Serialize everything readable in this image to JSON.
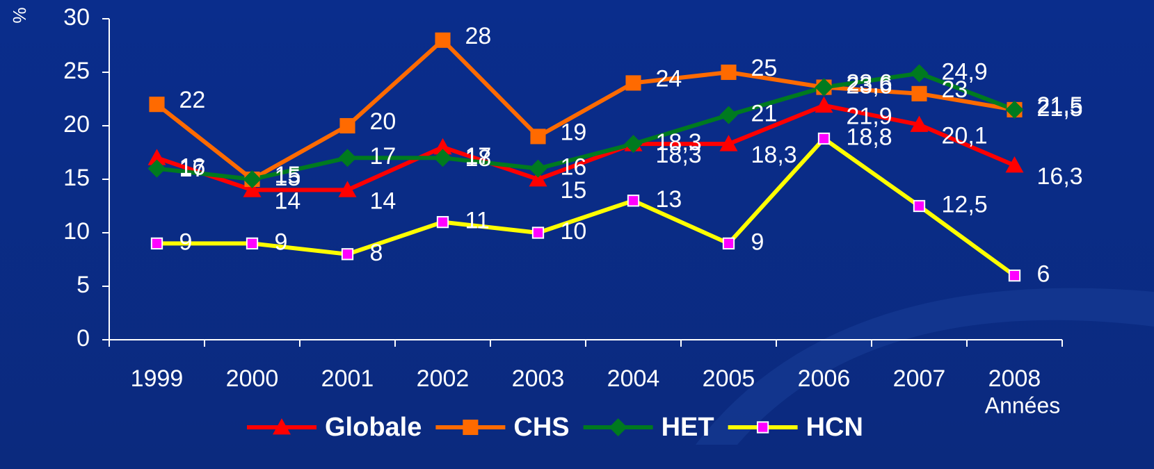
{
  "chart_data": {
    "type": "line",
    "y_label": "%",
    "x_label": "Années",
    "categories": [
      "1999",
      "2000",
      "2001",
      "2002",
      "2003",
      "2004",
      "2005",
      "2006",
      "2007",
      "2008"
    ],
    "ylim": [
      0,
      30
    ],
    "yticks": [
      0,
      5,
      10,
      15,
      20,
      25,
      30
    ],
    "series": [
      {
        "name": "Globale",
        "color": "#ff0000",
        "marker": "triangle",
        "marker_color": "#ff0000",
        "values": [
          17,
          14,
          14,
          18,
          15,
          18.3,
          18.3,
          21.9,
          20.1,
          16.3
        ],
        "value_labels": [
          "17",
          "14",
          "14",
          "18",
          "15",
          "18,3",
          "18,3",
          "21,9",
          "20,1",
          "16,3"
        ]
      },
      {
        "name": "CHS",
        "color": "#ff6a00",
        "marker": "square",
        "marker_color": "#ff6a00",
        "values": [
          22,
          15,
          20,
          28,
          19,
          24,
          25,
          23.6,
          23,
          21.5
        ],
        "value_labels": [
          "22",
          "15",
          "20",
          "28",
          "19",
          "24",
          "25",
          "23,6",
          "23",
          "21,5"
        ]
      },
      {
        "name": "HET",
        "color": "#007a1f",
        "marker": "diamond",
        "marker_color": "#007a1f",
        "values": [
          16,
          15,
          17,
          17,
          16,
          18.3,
          21,
          23.6,
          24.9,
          21.5
        ],
        "value_labels": [
          "16",
          "15",
          "17",
          "17",
          "16",
          "18,3",
          "21",
          "23,6",
          "24,9",
          "21,5"
        ]
      },
      {
        "name": "HCN",
        "color": "#ffff00",
        "marker": "square",
        "marker_color": "#ff00ff",
        "values": [
          9,
          9,
          8,
          11,
          10,
          13,
          9,
          18.8,
          12.5,
          6
        ],
        "value_labels": [
          "9",
          "9",
          "8",
          "11",
          "10",
          "13",
          "9",
          "18,8",
          "12,5",
          "6"
        ]
      }
    ]
  }
}
